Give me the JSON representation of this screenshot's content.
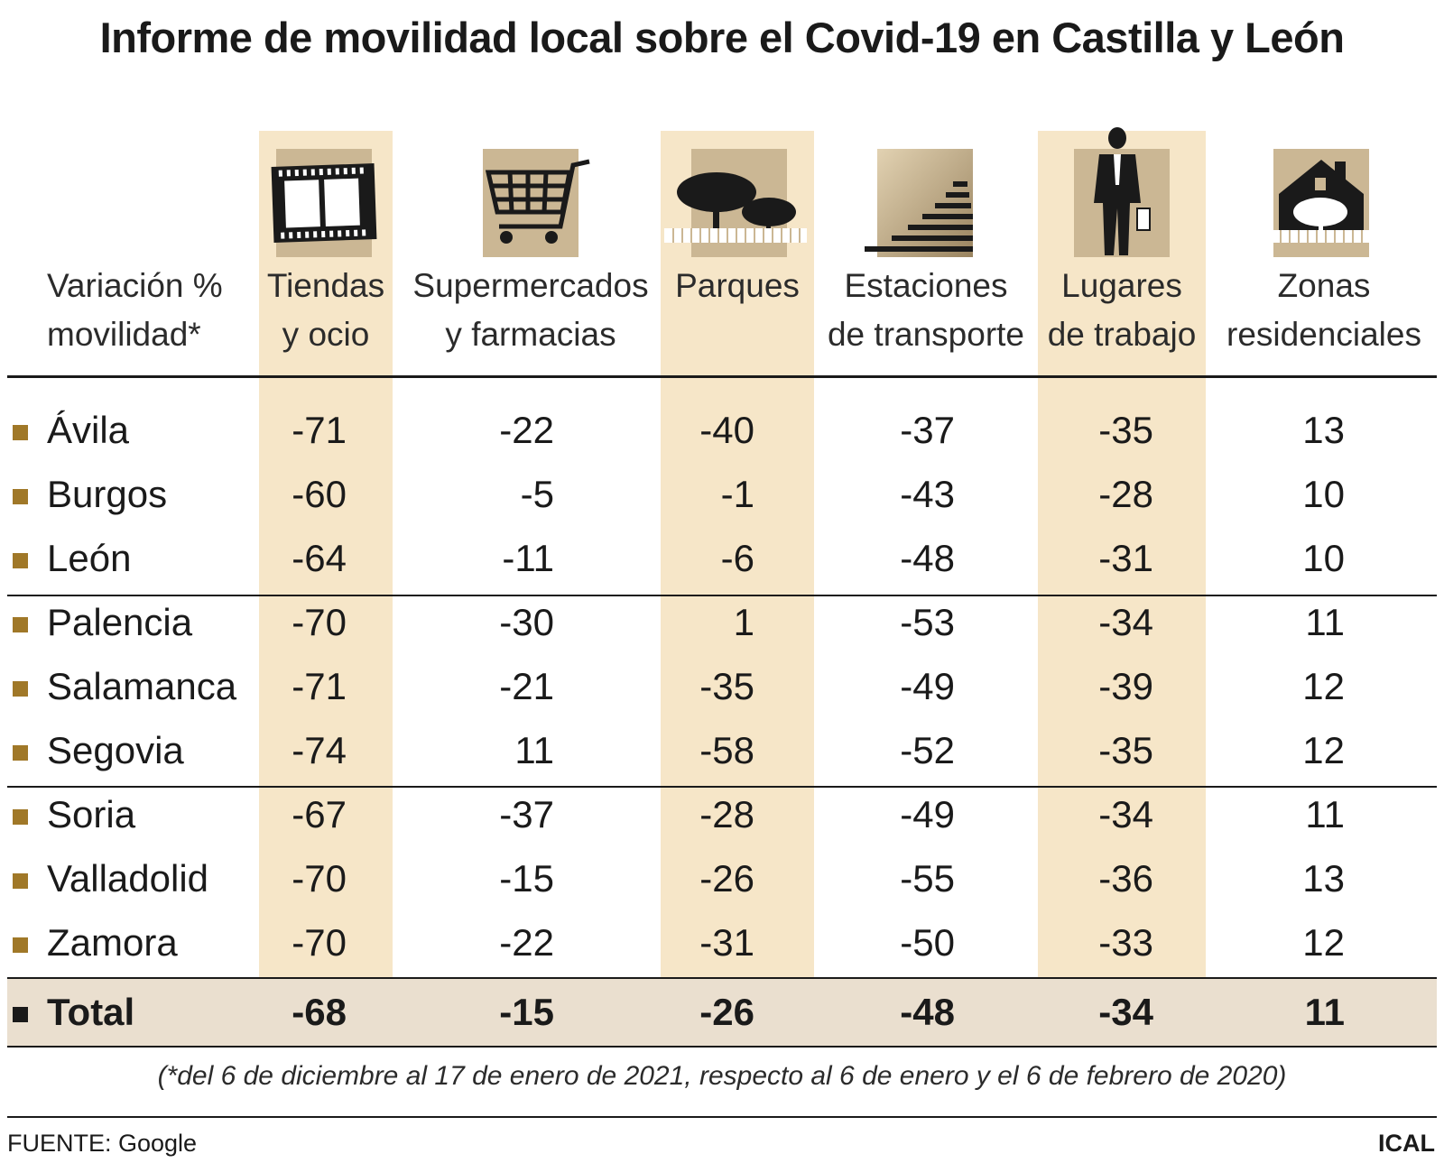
{
  "title": "Informe de movilidad local sobre el Covid-19 en Castilla y León",
  "row_header": [
    "Variación %",
    "movilidad*"
  ],
  "columns": [
    {
      "line1": "Tiendas",
      "line2": "y ocio",
      "icon": "film-strip-icon"
    },
    {
      "line1": "Supermercados",
      "line2": "y farmacias",
      "icon": "shopping-cart-icon"
    },
    {
      "line1": "Parques",
      "line2": "",
      "icon": "trees-icon"
    },
    {
      "line1": "Estaciones",
      "line2": "de transporte",
      "icon": "stairs-icon"
    },
    {
      "line1": "Lugares",
      "line2": "de trabajo",
      "icon": "businessman-icon"
    },
    {
      "line1": "Zonas",
      "line2": "residenciales",
      "icon": "house-icon"
    }
  ],
  "colors": {
    "band": "#f6e6c8",
    "icon_bg": "#cbb794",
    "bullet": "#a07828",
    "total_bg": "#eadfcf",
    "text": "#1a1a1a"
  },
  "chart_data": {
    "type": "table",
    "title": "Informe de movilidad local sobre el Covid-19 en Castilla y León",
    "columns": [
      "Tiendas y ocio",
      "Supermercados y farmacias",
      "Parques",
      "Estaciones de transporte",
      "Lugares de trabajo",
      "Zonas residenciales"
    ],
    "rows": [
      {
        "name": "Ávila",
        "values": [
          "-71",
          "-22",
          "-40",
          "-37",
          "-35",
          "13"
        ]
      },
      {
        "name": "Burgos",
        "values": [
          "-60",
          "-5",
          "-1",
          "-43",
          "-28",
          "10"
        ]
      },
      {
        "name": "León",
        "values": [
          "-64",
          "-11",
          "-6",
          "-48",
          "-31",
          "10"
        ]
      },
      {
        "name": "Palencia",
        "values": [
          "-70",
          "-30",
          "1",
          "-53",
          "-34",
          "11"
        ]
      },
      {
        "name": "Salamanca",
        "values": [
          "-71",
          "-21",
          "-35",
          "-49",
          "-39",
          "12"
        ]
      },
      {
        "name": "Segovia",
        "values": [
          "-74",
          "11",
          "-58",
          "-52",
          "-35",
          "12"
        ]
      },
      {
        "name": "Soria",
        "values": [
          "-67",
          "-37",
          "-28",
          "-49",
          "-34",
          "11"
        ]
      },
      {
        "name": "Valladolid",
        "values": [
          "-70",
          "-15",
          "-26",
          "-55",
          "-36",
          "13"
        ]
      },
      {
        "name": "Zamora",
        "values": [
          "-70",
          "-22",
          "-31",
          "-50",
          "-33",
          "12"
        ]
      }
    ],
    "total": {
      "name": "Total",
      "values": [
        "-68",
        "-15",
        "-26",
        "-48",
        "-34",
        "11"
      ]
    }
  },
  "note": "(*del 6 de diciembre al 17 de enero de 2021, respecto al 6 de enero y el 6 de febrero de 2020)",
  "source": "FUENTE: Google",
  "credit": "ICAL"
}
